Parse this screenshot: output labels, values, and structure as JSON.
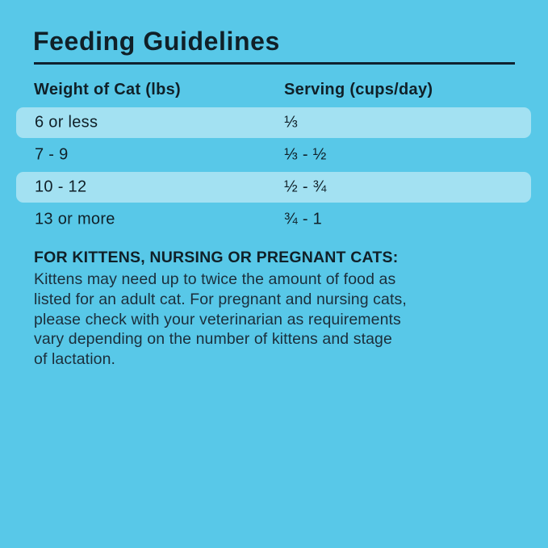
{
  "title": "Feeding Guidelines",
  "colors": {
    "background": "#58C8E8",
    "row_band": "#A3E1F2",
    "text_dark": "#102028",
    "body_text": "#1B2E3B",
    "rule": "#0F2230"
  },
  "table": {
    "columns": [
      "Weight of Cat (lbs)",
      "Serving (cups/day)"
    ],
    "rows": [
      {
        "weight": "6 or less",
        "serving": "⅓",
        "highlighted": true
      },
      {
        "weight": "7 - 9",
        "serving": "⅓ - ½",
        "highlighted": false
      },
      {
        "weight": "10 - 12",
        "serving": "½ - ¾",
        "highlighted": true
      },
      {
        "weight": "13 or more",
        "serving": "¾ - 1",
        "highlighted": false
      }
    ]
  },
  "note": {
    "heading": "FOR KITTENS, NURSING OR PREGNANT CATS:",
    "body": "Kittens may need up to twice the amount of food as\nlisted for an adult cat. For pregnant and nursing cats,\nplease check with your veterinarian as requirements\nvary depending on the number of kittens and stage\nof lactation."
  }
}
